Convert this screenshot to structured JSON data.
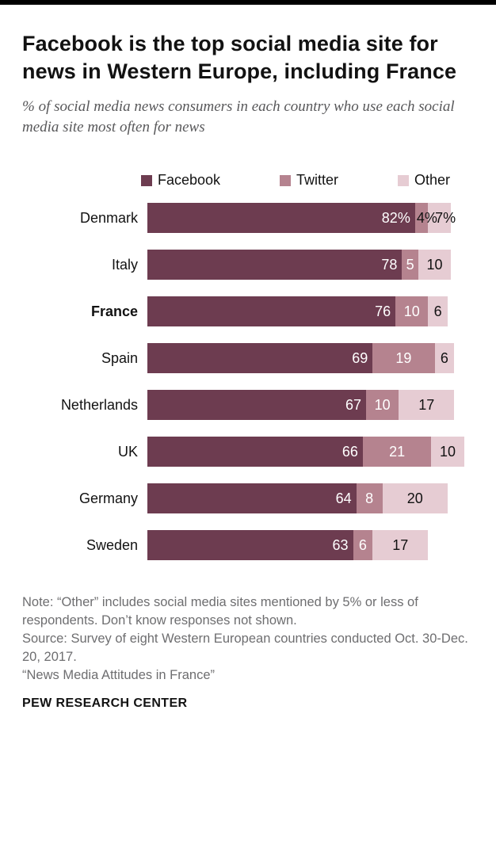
{
  "header": {
    "title": "Facebook is the top social media site for news in Western Europe, including France",
    "subtitle": "% of social media news consumers in each country who use each social media site most often for news"
  },
  "legend": [
    {
      "label": "Facebook",
      "color": "#6d3c50"
    },
    {
      "label": "Twitter",
      "color": "#b5838f"
    },
    {
      "label": "Other",
      "color": "#e6ccd3"
    }
  ],
  "chart_data": {
    "type": "bar",
    "orientation": "horizontal",
    "stacked": true,
    "unit": "%",
    "xlim": [
      0,
      100
    ],
    "series_names": [
      "Facebook",
      "Twitter",
      "Other"
    ],
    "categories": [
      "Denmark",
      "Italy",
      "France",
      "Spain",
      "Netherlands",
      "UK",
      "Germany",
      "Sweden"
    ],
    "rows": [
      {
        "country": "Denmark",
        "bold": false,
        "values": [
          82,
          4,
          7
        ],
        "labels": [
          "82%",
          "4%",
          "7%"
        ]
      },
      {
        "country": "Italy",
        "bold": false,
        "values": [
          78,
          5,
          10
        ],
        "labels": [
          "78",
          "5",
          "10"
        ]
      },
      {
        "country": "France",
        "bold": true,
        "values": [
          76,
          10,
          6
        ],
        "labels": [
          "76",
          "10",
          "6"
        ]
      },
      {
        "country": "Spain",
        "bold": false,
        "values": [
          69,
          19,
          6
        ],
        "labels": [
          "69",
          "19",
          "6"
        ]
      },
      {
        "country": "Netherlands",
        "bold": false,
        "values": [
          67,
          10,
          17
        ],
        "labels": [
          "67",
          "10",
          "17"
        ]
      },
      {
        "country": "UK",
        "bold": false,
        "values": [
          66,
          21,
          10
        ],
        "labels": [
          "66",
          "21",
          "10"
        ]
      },
      {
        "country": "Germany",
        "bold": false,
        "values": [
          64,
          8,
          20
        ],
        "labels": [
          "64",
          "8",
          "20"
        ]
      },
      {
        "country": "Sweden",
        "bold": false,
        "values": [
          63,
          6,
          17
        ],
        "labels": [
          "63",
          "6",
          "17"
        ]
      }
    ]
  },
  "footer": {
    "note": "Note: “Other” includes social media sites mentioned by 5% or less of respondents. Don’t know responses not shown.",
    "source": "Source: Survey of eight Western European countries conducted Oct. 30-Dec. 20, 2017.",
    "report": "“News Media Attitudes in France”",
    "brand": "PEW RESEARCH CENTER"
  }
}
